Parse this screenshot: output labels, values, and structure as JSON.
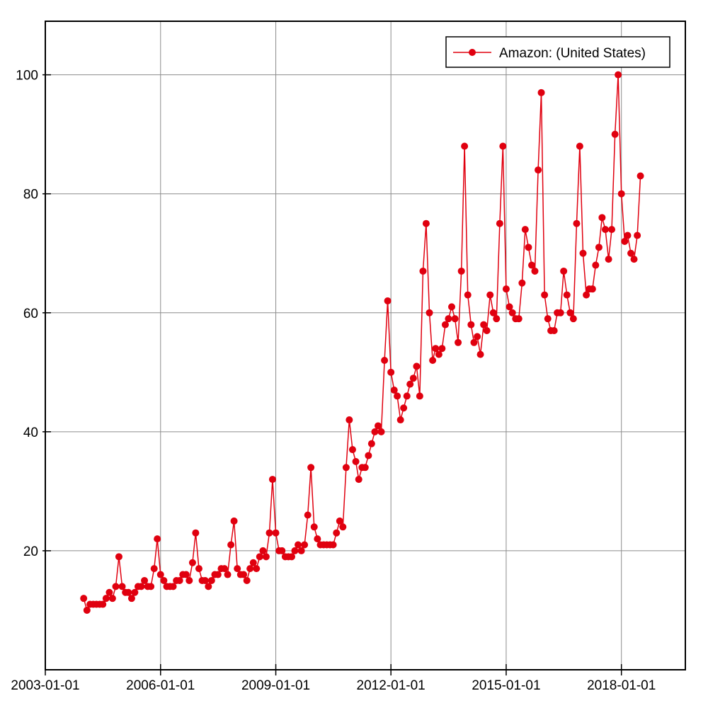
{
  "chart_data": {
    "type": "line",
    "title": "",
    "xlabel": "",
    "ylabel": "",
    "x_start": "2004-01",
    "x_step": "month",
    "x_range": [
      "2003-01-01",
      "2019-09-01"
    ],
    "ylim": [
      0,
      109
    ],
    "y_ticks": [
      20,
      40,
      60,
      80,
      100
    ],
    "x_ticks": [
      "2003-01-01",
      "2006-01-01",
      "2009-01-01",
      "2012-01-01",
      "2015-01-01",
      "2018-01-01"
    ],
    "grid": true,
    "legend_position": "top-right",
    "series": [
      {
        "name": "Amazon: (United States)",
        "color": "#e0000f",
        "marker": "circle",
        "values": [
          12,
          10,
          11,
          11,
          11,
          11,
          11,
          12,
          13,
          12,
          14,
          19,
          14,
          13,
          13,
          12,
          13,
          14,
          14,
          15,
          14,
          14,
          17,
          22,
          16,
          15,
          14,
          14,
          14,
          15,
          15,
          16,
          16,
          15,
          18,
          23,
          17,
          15,
          15,
          14,
          15,
          16,
          16,
          17,
          17,
          16,
          21,
          25,
          17,
          16,
          16,
          15,
          17,
          18,
          17,
          19,
          20,
          19,
          23,
          32,
          23,
          20,
          20,
          19,
          19,
          19,
          20,
          21,
          20,
          21,
          26,
          34,
          24,
          22,
          21,
          21,
          21,
          21,
          21,
          23,
          25,
          24,
          34,
          42,
          37,
          35,
          32,
          34,
          34,
          36,
          38,
          40,
          41,
          40,
          52,
          62,
          50,
          47,
          46,
          42,
          44,
          46,
          48,
          49,
          51,
          46,
          67,
          75,
          60,
          52,
          54,
          53,
          54,
          58,
          59,
          61,
          59,
          55,
          67,
          88,
          63,
          58,
          55,
          56,
          53,
          58,
          57,
          63,
          60,
          59,
          75,
          88,
          64,
          61,
          60,
          59,
          59,
          65,
          74,
          71,
          68,
          67,
          84,
          97,
          63,
          59,
          57,
          57,
          60,
          60,
          67,
          63,
          60,
          59,
          75,
          88,
          70,
          63,
          64,
          64,
          68,
          71,
          76,
          74,
          69,
          74,
          90,
          100,
          80,
          72,
          73,
          70,
          69,
          73,
          83
        ]
      }
    ]
  }
}
